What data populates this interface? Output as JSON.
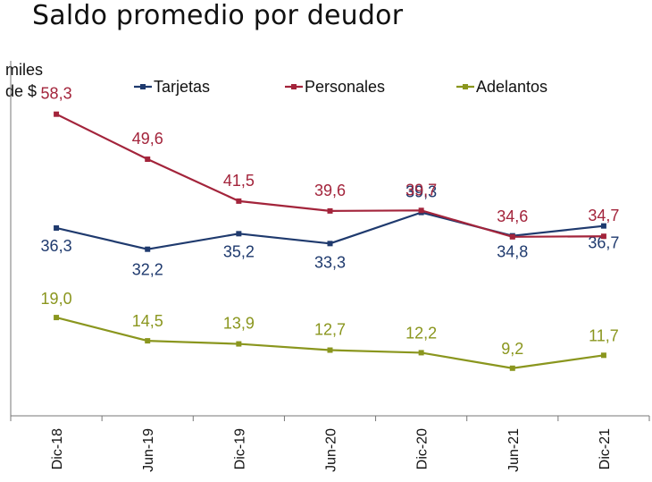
{
  "chart_data": {
    "type": "line",
    "title": "Saldo promedio por deudor",
    "ylabel_line1": "miles",
    "ylabel_line2": "de $",
    "xlabel": "",
    "categories": [
      "Dic-18",
      "Jun-19",
      "Dic-19",
      "Jun-20",
      "Dic-20",
      "Jun-21",
      "Dic-21"
    ],
    "ylim": [
      0,
      70
    ],
    "grid": false,
    "legend_position": "top",
    "series": [
      {
        "name": "Tarjetas",
        "color": "#1f3a6e",
        "values": [
          36.3,
          32.2,
          35.2,
          33.3,
          39.3,
          34.8,
          36.7
        ],
        "labels": [
          "36,3",
          "32,2",
          "35,2",
          "33,3",
          "39,3",
          "34,8",
          "36,7"
        ]
      },
      {
        "name": "Personales",
        "color": "#a3243b",
        "values": [
          58.3,
          49.6,
          41.5,
          39.6,
          39.7,
          34.6,
          34.7
        ],
        "labels": [
          "58,3",
          "49,6",
          "41,5",
          "39,6",
          "39,7",
          "34,6",
          "34,7"
        ]
      },
      {
        "name": "Adelantos",
        "color": "#8a961e",
        "values": [
          19.0,
          14.5,
          13.9,
          12.7,
          12.2,
          9.2,
          11.7
        ],
        "labels": [
          "19,0",
          "14,5",
          "13,9",
          "12,7",
          "12,2",
          "9,2",
          "11,7"
        ]
      }
    ]
  }
}
